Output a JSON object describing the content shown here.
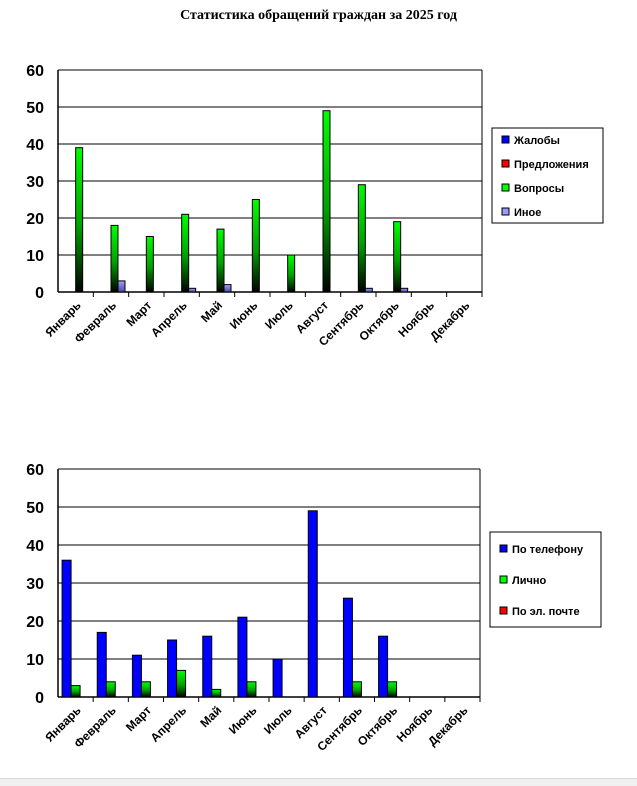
{
  "title": "Статистика обращений граждан за 2025 год",
  "chart_data": [
    {
      "type": "bar",
      "title": "",
      "ylim": [
        0,
        60
      ],
      "yticks": [
        0,
        10,
        20,
        30,
        40,
        50,
        60
      ],
      "grid": true,
      "legend_position": "right",
      "categories": [
        "Январь",
        "Февраль",
        "Март",
        "Апрель",
        "Май",
        "Июнь",
        "Июль",
        "Август",
        "Сентябрь",
        "Октябрь",
        "Ноябрь",
        "Декабрь"
      ],
      "series": [
        {
          "name": "Жалобы",
          "color": "#0000ff",
          "values": [
            0,
            0,
            0,
            0,
            0,
            0,
            0,
            0,
            0,
            0,
            0,
            0
          ]
        },
        {
          "name": "Предложения",
          "color": "#ff0000",
          "values": [
            0,
            0,
            0,
            0,
            0,
            0,
            0,
            0,
            0,
            0,
            0,
            0
          ]
        },
        {
          "name": "Вопросы",
          "color": "#00ff00",
          "values": [
            39,
            18,
            15,
            21,
            17,
            25,
            10,
            49,
            29,
            19,
            0,
            0
          ]
        },
        {
          "name": "Иное",
          "color": "#9999ff",
          "values": [
            0,
            3,
            0,
            1,
            2,
            0,
            0,
            0,
            1,
            1,
            0,
            0
          ]
        }
      ]
    },
    {
      "type": "bar",
      "title": "",
      "ylim": [
        0,
        60
      ],
      "yticks": [
        0,
        10,
        20,
        30,
        40,
        50,
        60
      ],
      "grid": true,
      "legend_position": "right",
      "categories": [
        "Январь",
        "Февраль",
        "Март",
        "Апрель",
        "Май",
        "Июнь",
        "Июль",
        "Август",
        "Сентябрь",
        "Октябрь",
        "Ноябрь",
        "Декабрь"
      ],
      "series": [
        {
          "name": "По телефону",
          "color": "#0000ff",
          "values": [
            36,
            17,
            11,
            15,
            16,
            21,
            10,
            49,
            26,
            16,
            0,
            0
          ]
        },
        {
          "name": "Лично",
          "color": "#00ff00",
          "values": [
            3,
            4,
            4,
            7,
            2,
            4,
            0,
            0,
            4,
            4,
            0,
            0
          ]
        },
        {
          "name": "По эл. почте",
          "color": "#ff0000",
          "values": [
            0,
            0,
            0,
            0,
            0,
            0,
            0,
            0,
            0,
            0,
            0,
            0
          ]
        }
      ]
    }
  ]
}
